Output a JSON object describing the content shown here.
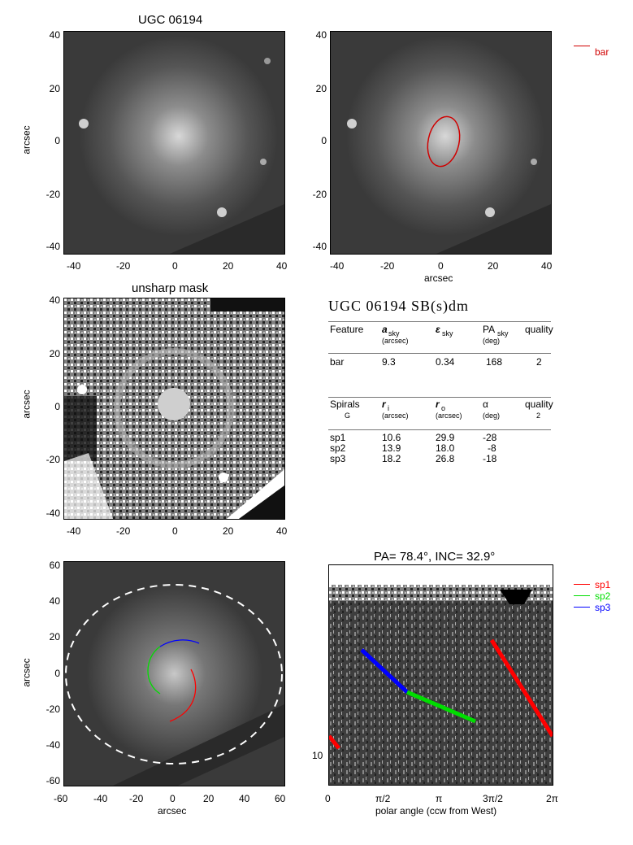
{
  "panels": {
    "top_left_title": "UGC 06194",
    "mid_left_title": "unsharp mask",
    "phase_title": "PA=  78.4°, INC=  32.9°",
    "ylabel": "arcsec",
    "xlabel": "arcsec",
    "phase_xlabel": "polar angle (ccw from West)",
    "ticks_40": [
      "40",
      "20",
      "0",
      "-20",
      "-40"
    ],
    "xticks_40": [
      "-40",
      "-20",
      "0",
      "20",
      "40"
    ],
    "ticks_60": [
      "60",
      "40",
      "20",
      "0",
      "-20",
      "-40",
      "-60"
    ],
    "xticks_60": [
      "-60",
      "-40",
      "-20",
      "0",
      "20",
      "40",
      "60"
    ],
    "phase_xticks": [
      "0",
      "π/2",
      "π",
      "3π/2",
      "2π"
    ],
    "phase_ytick": "10"
  },
  "legend_bar": {
    "label": "bar",
    "color": "#d00000"
  },
  "legend_spirals": [
    {
      "label": "sp1",
      "color": "#ff0000"
    },
    {
      "label": "sp2",
      "color": "#00dd00"
    },
    {
      "label": "sp3",
      "color": "#0000ff"
    }
  ],
  "table": {
    "title": "UGC 06194   SB(s)dm",
    "bar_header": [
      "Feature",
      "a",
      "ε",
      "PA",
      "quality"
    ],
    "bar_header_sub": [
      "sky",
      "sky",
      "sky"
    ],
    "bar_units": [
      "(arcsec)",
      "",
      "(deg)"
    ],
    "bar_row": [
      "bar",
      "9.3",
      "0.34",
      "168",
      "2"
    ],
    "spiral_header": [
      "Spirals",
      "r",
      "r",
      "α",
      "quality"
    ],
    "spiral_header_sub": [
      "i",
      "o"
    ],
    "spiral_sub": [
      "G",
      "(arcsec)",
      "(arcsec)",
      "(deg)",
      "2"
    ],
    "spiral_rows": [
      [
        "sp1",
        "10.6",
        "29.9",
        "-28"
      ],
      [
        "sp2",
        "13.9",
        "18.0",
        "-8"
      ],
      [
        "sp3",
        "18.2",
        "26.8",
        "-18"
      ]
    ]
  }
}
